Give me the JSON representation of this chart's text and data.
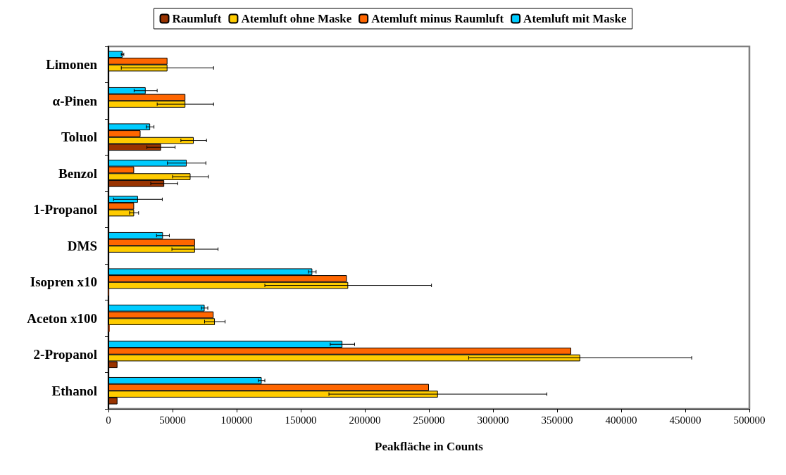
{
  "chart_data": {
    "type": "bar",
    "orientation": "horizontal",
    "xlabel": "Peakfläche in Counts",
    "categories": [
      "Limonen",
      "α-Pinen",
      "Toluol",
      "Benzol",
      "1-Propanol",
      "DMS",
      "Isopren x10",
      "Aceton x100",
      "2-Propanol",
      "Ethanol"
    ],
    "series": [
      {
        "name": "Raumluft",
        "color": "#993300",
        "values": [
          null,
          null,
          41000,
          43500,
          null,
          null,
          500,
          1000,
          7000,
          7000
        ],
        "errors": [
          null,
          null,
          11000,
          10500,
          null,
          null,
          null,
          null,
          null,
          null
        ]
      },
      {
        "name": "Atemluft ohne Maske",
        "color": "#ffcc00",
        "values": [
          46000,
          60000,
          66500,
          64000,
          20000,
          67500,
          187000,
          83000,
          368000,
          257000
        ],
        "errors": [
          36000,
          22000,
          10000,
          14000,
          3500,
          18000,
          65000,
          8000,
          87000,
          85000
        ]
      },
      {
        "name": "Atemluft minus Raumluft",
        "color": "#ff6600",
        "values": [
          46000,
          60000,
          25000,
          20000,
          20000,
          67500,
          186000,
          82000,
          361000,
          250000
        ]
      },
      {
        "name": "Atemluft mit Maske",
        "color": "#00ccff",
        "values": [
          11000,
          29000,
          32500,
          61000,
          23000,
          42500,
          159000,
          75000,
          182500,
          119500
        ],
        "errors": [
          1000,
          9000,
          3000,
          15000,
          19000,
          5000,
          3000,
          2500,
          9500,
          2500
        ]
      }
    ],
    "xlim": [
      0,
      500000
    ],
    "xticks": [
      0,
      50000,
      100000,
      150000,
      200000,
      250000,
      300000,
      350000,
      400000,
      450000,
      500000
    ],
    "grid": false,
    "legend": "top"
  }
}
